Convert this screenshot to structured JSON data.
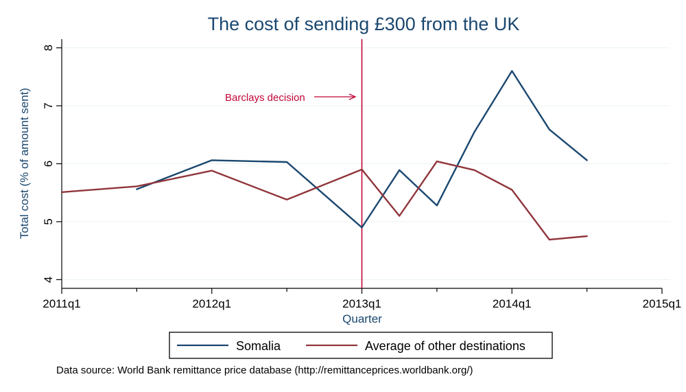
{
  "chart_data": {
    "type": "line",
    "title": "The cost of sending £300 from the UK",
    "xlabel": "Quarter",
    "ylabel": "Total cost (% of amount sent)",
    "xlim": [
      2011.0,
      2015.0
    ],
    "ylim": [
      3.85,
      8.15
    ],
    "x_ticks": [
      {
        "value": 2011,
        "label": "2011q1"
      },
      {
        "value": 2012,
        "label": "2012q1"
      },
      {
        "value": 2013,
        "label": "2013q1"
      },
      {
        "value": 2014,
        "label": "2014q1"
      },
      {
        "value": 2015,
        "label": "2015q1"
      }
    ],
    "y_ticks": [
      4,
      5,
      6,
      7,
      8
    ],
    "grid": "horizontal",
    "series": [
      {
        "name": "Somalia",
        "color": "#1a476f",
        "points": [
          [
            2011.5,
            5.56
          ],
          [
            2012.0,
            6.06
          ],
          [
            2012.5,
            6.03
          ],
          [
            2013.0,
            4.9
          ],
          [
            2013.25,
            5.89
          ],
          [
            2013.5,
            5.28
          ],
          [
            2013.75,
            6.55
          ],
          [
            2014.0,
            7.6
          ],
          [
            2014.25,
            6.59
          ],
          [
            2014.5,
            6.06
          ]
        ]
      },
      {
        "name": "Average of other destinations",
        "color": "#90353b",
        "points": [
          [
            2011.0,
            5.51
          ],
          [
            2011.5,
            5.61
          ],
          [
            2012.0,
            5.88
          ],
          [
            2012.5,
            5.38
          ],
          [
            2013.0,
            5.9
          ],
          [
            2013.25,
            5.1
          ],
          [
            2013.5,
            6.04
          ],
          [
            2013.75,
            5.89
          ],
          [
            2014.0,
            5.55
          ],
          [
            2014.25,
            4.69
          ],
          [
            2014.5,
            4.75
          ]
        ]
      }
    ],
    "reference_line": {
      "x": 2013.0,
      "color": "#c10534"
    },
    "annotation": {
      "text": "Barclays decision",
      "color": "#c10534"
    },
    "legend": {
      "placement": "bottom",
      "entries": [
        "Somalia",
        "Average of other destinations"
      ]
    },
    "note": "Data source: World Bank remittance price database (http://remittanceprices.worldbank.org/)"
  }
}
